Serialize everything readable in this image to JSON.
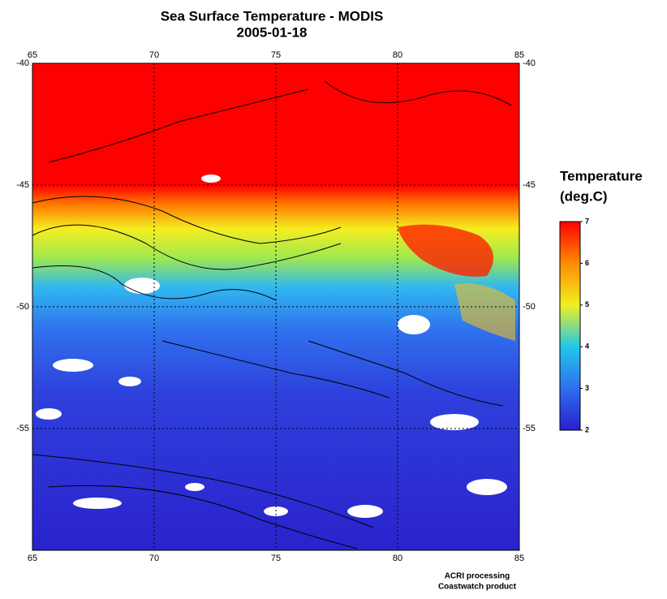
{
  "map": {
    "title": [
      "Sea Surface Temperature - MODIS",
      "2005-01-18"
    ],
    "lon_lim": [
      65,
      85
    ],
    "lon_ticks": [
      65,
      70,
      75,
      80,
      85
    ],
    "lat_lim": [
      -40,
      -60
    ],
    "lat_ticks": [
      -40,
      -45,
      -50,
      -55
    ],
    "colorbar": {
      "title": [
        "Temperature",
        "(deg.C)"
      ],
      "lim": [
        2,
        7
      ],
      "ticks": [
        2,
        3,
        4,
        5,
        6,
        7
      ],
      "colors": [
        "#2a1fd0",
        "#2e6ef0",
        "#20c8e8",
        "#f0f020",
        "#ff8c00",
        "#ff0000"
      ]
    },
    "credits": [
      "ACRI processing",
      "Coastwatch product"
    ]
  }
}
